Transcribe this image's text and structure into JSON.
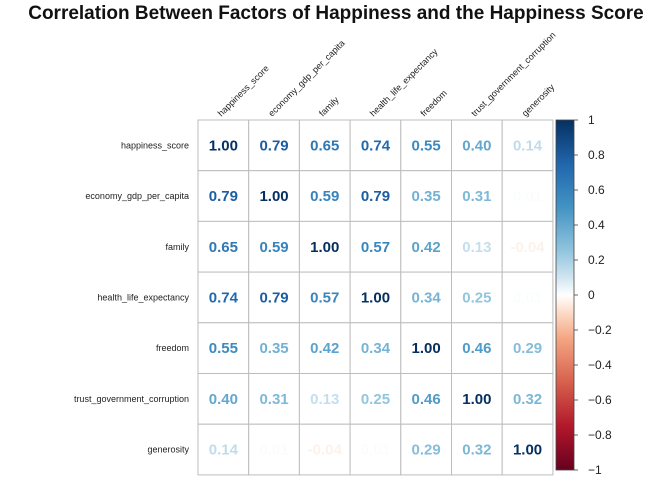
{
  "chart_data": {
    "type": "heatmap",
    "title": "Correlation Between Factors of Happiness and the Happiness Score",
    "variables": [
      "happiness_score",
      "economy_gdp_per_capita",
      "family",
      "health_life_expectancy",
      "freedom",
      "trust_government_corruption",
      "generosity"
    ],
    "matrix": [
      [
        1.0,
        0.79,
        0.65,
        0.74,
        0.55,
        0.4,
        0.14
      ],
      [
        0.79,
        1.0,
        0.59,
        0.79,
        0.35,
        0.31,
        0.01
      ],
      [
        0.65,
        0.59,
        1.0,
        0.57,
        0.42,
        0.13,
        -0.04
      ],
      [
        0.74,
        0.79,
        0.57,
        1.0,
        0.34,
        0.25,
        0.01
      ],
      [
        0.55,
        0.35,
        0.42,
        0.34,
        1.0,
        0.46,
        0.29
      ],
      [
        0.4,
        0.31,
        0.13,
        0.25,
        0.46,
        1.0,
        0.32
      ],
      [
        0.14,
        0.01,
        -0.04,
        0.01,
        0.29,
        0.32,
        1.0
      ]
    ],
    "color_scale": {
      "range": [
        -1,
        1
      ],
      "ticks": [
        "1",
        "0.8",
        "0.6",
        "0.4",
        "0.2",
        "0",
        "−0.2",
        "−0.4",
        "−0.6",
        "−0.8",
        "−1"
      ],
      "stops": [
        {
          "value": -1.0,
          "color": "#67001f"
        },
        {
          "value": -0.75,
          "color": "#b2182b"
        },
        {
          "value": -0.5,
          "color": "#d6604d"
        },
        {
          "value": -0.25,
          "color": "#f4a582"
        },
        {
          "value": -0.1,
          "color": "#fddbc7"
        },
        {
          "value": 0.0,
          "color": "#ffffff"
        },
        {
          "value": 0.1,
          "color": "#d1e5f0"
        },
        {
          "value": 0.25,
          "color": "#92c5de"
        },
        {
          "value": 0.5,
          "color": "#4393c3"
        },
        {
          "value": 0.75,
          "color": "#2166ac"
        },
        {
          "value": 1.0,
          "color": "#053061"
        }
      ]
    },
    "legend_position": "right",
    "grid": true
  }
}
